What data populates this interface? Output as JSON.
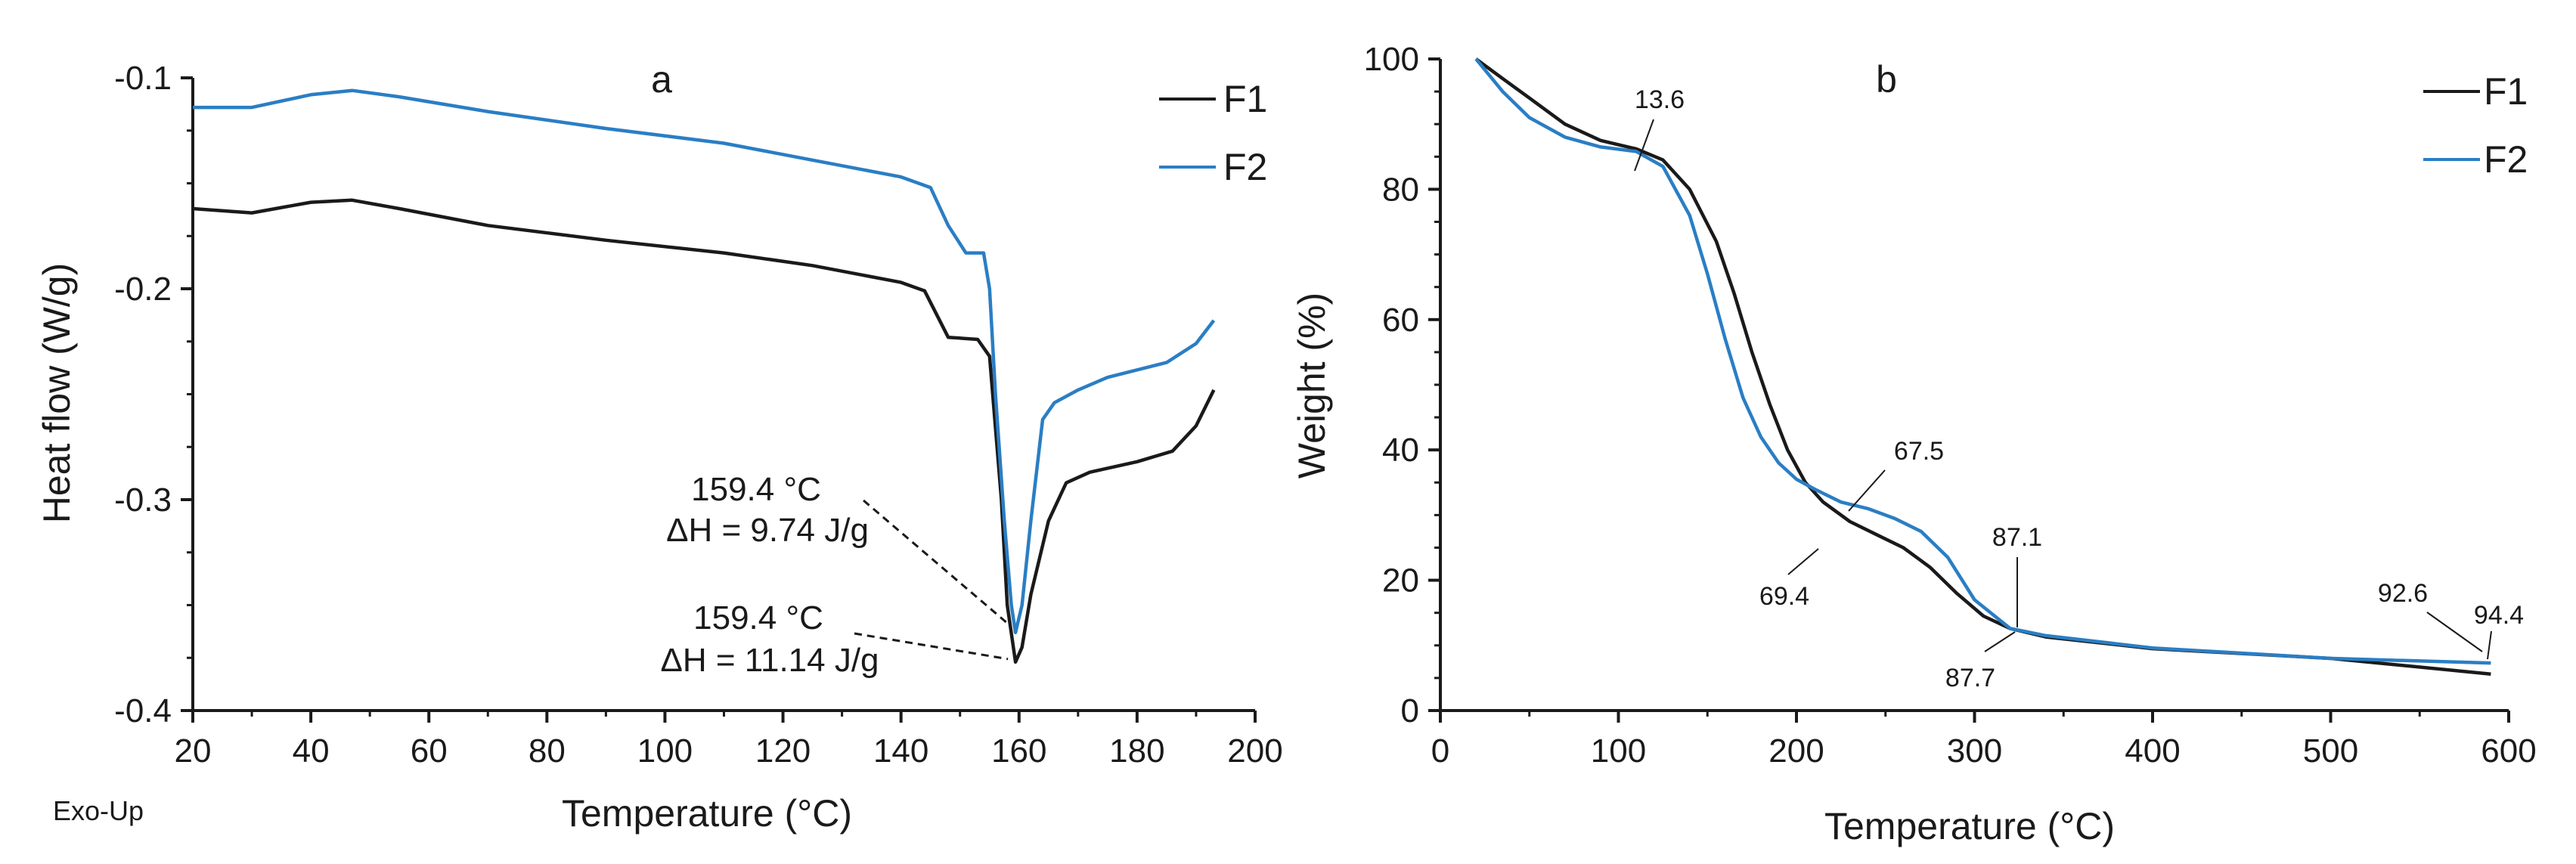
{
  "chart_data": [
    {
      "type": "line",
      "panel": "a",
      "xlabel": "Temperature (°C)",
      "ylabel": "Heat flow (W/g)",
      "xlim": [
        20,
        200
      ],
      "ylim": [
        -0.4,
        -0.1
      ],
      "xticks": [
        20,
        40,
        60,
        80,
        100,
        120,
        140,
        160,
        180,
        200
      ],
      "yticks": [
        -0.1,
        -0.2,
        -0.3,
        -0.4
      ],
      "ytick_labels": [
        "-0.1",
        "-0.2",
        "-0.3",
        "-0.4"
      ],
      "corner_note": "Exo-Up",
      "legend_position": "top-right",
      "series": [
        {
          "name": "F1",
          "color": "#1a1a1a",
          "x": [
            20,
            30,
            40,
            47,
            55,
            70,
            90,
            110,
            125,
            140,
            144,
            148,
            153,
            155,
            157,
            158,
            159.4,
            160.5,
            162,
            165,
            168,
            172,
            180,
            186,
            190,
            193
          ],
          "y": [
            -0.162,
            -0.164,
            -0.159,
            -0.158,
            -0.162,
            -0.17,
            -0.177,
            -0.183,
            -0.189,
            -0.197,
            -0.201,
            -0.223,
            -0.224,
            -0.232,
            -0.3,
            -0.35,
            -0.377,
            -0.37,
            -0.345,
            -0.31,
            -0.292,
            -0.287,
            -0.282,
            -0.277,
            -0.265,
            -0.248
          ]
        },
        {
          "name": "F2",
          "color": "#2a7ec4",
          "x": [
            20,
            30,
            40,
            47,
            55,
            70,
            90,
            110,
            125,
            140,
            145,
            148,
            151,
            154,
            155,
            156,
            157.5,
            158.7,
            159.4,
            160.5,
            162,
            164,
            166,
            170,
            175,
            185,
            190,
            193
          ],
          "y": [
            -0.114,
            -0.114,
            -0.108,
            -0.106,
            -0.109,
            -0.116,
            -0.124,
            -0.131,
            -0.139,
            -0.147,
            -0.152,
            -0.17,
            -0.183,
            -0.183,
            -0.2,
            -0.25,
            -0.31,
            -0.35,
            -0.363,
            -0.35,
            -0.31,
            -0.262,
            -0.254,
            -0.248,
            -0.242,
            -0.235,
            -0.226,
            -0.215
          ]
        }
      ],
      "annotations": [
        {
          "line1": "159.4 °C",
          "line2": "ΔH = 9.74 J/g",
          "x": 159.4,
          "y": -0.363,
          "series": "F2"
        },
        {
          "line1": "159.4 °C",
          "line2": "ΔH = 11.14 J/g",
          "x": 159.4,
          "y": -0.377,
          "series": "F1"
        }
      ]
    },
    {
      "type": "line",
      "panel": "b",
      "xlabel": "Temperature (°C)",
      "ylabel": "Weight (%)",
      "xlim": [
        0,
        600
      ],
      "ylim": [
        0,
        100
      ],
      "xticks": [
        0,
        100,
        200,
        300,
        400,
        500,
        600
      ],
      "yticks": [
        0,
        20,
        40,
        60,
        80,
        100
      ],
      "legend_position": "top-right",
      "series": [
        {
          "name": "F1",
          "color": "#1a1a1a",
          "x": [
            20,
            35,
            50,
            70,
            90,
            110,
            125,
            140,
            155,
            165,
            175,
            185,
            195,
            205,
            215,
            230,
            245,
            260,
            275,
            290,
            305,
            320,
            340,
            400,
            500,
            590
          ],
          "y": [
            100,
            97,
            94,
            90,
            87.5,
            86.2,
            84.5,
            80,
            72,
            64,
            55,
            47,
            40,
            35,
            32,
            29,
            27,
            25,
            22,
            18,
            14.5,
            12.6,
            11.3,
            9.5,
            8,
            5.6
          ]
        },
        {
          "name": "F2",
          "color": "#2a7ec4",
          "x": [
            20,
            35,
            50,
            70,
            90,
            110,
            125,
            140,
            150,
            160,
            170,
            180,
            190,
            200,
            210,
            225,
            240,
            255,
            270,
            285,
            300,
            320,
            340,
            400,
            500,
            590
          ],
          "y": [
            100,
            95,
            91,
            88,
            86.5,
            85.8,
            83.5,
            76,
            67,
            57,
            48,
            42,
            38,
            35.5,
            34,
            32,
            31,
            29.5,
            27.5,
            23.5,
            17,
            12.6,
            11.5,
            9.6,
            8,
            7.3
          ]
        }
      ],
      "annotations": [
        {
          "text": "13.6",
          "x": 110,
          "y": 86.2
        },
        {
          "text": "67.5",
          "x": 235,
          "y": 31.5
        },
        {
          "text": "69.4",
          "x": 215,
          "y": 32
        },
        {
          "text": "87.1",
          "x": 320,
          "y": 12.9
        },
        {
          "text": "87.7",
          "x": 320,
          "y": 12.6
        },
        {
          "text": "92.6",
          "x": 590,
          "y": 7.3
        },
        {
          "text": "94.4",
          "x": 590,
          "y": 5.6
        }
      ]
    }
  ]
}
